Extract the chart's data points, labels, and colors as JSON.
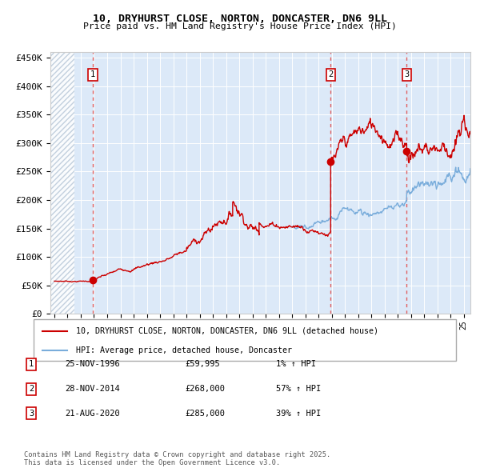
{
  "title1": "10, DRYHURST CLOSE, NORTON, DONCASTER, DN6 9LL",
  "title2": "Price paid vs. HM Land Registry's House Price Index (HPI)",
  "ylabel_ticks": [
    "£0",
    "£50K",
    "£100K",
    "£150K",
    "£200K",
    "£250K",
    "£300K",
    "£350K",
    "£400K",
    "£450K"
  ],
  "ytick_vals": [
    0,
    50000,
    100000,
    150000,
    200000,
    250000,
    300000,
    350000,
    400000,
    450000
  ],
  "xlim_start": 1993.7,
  "xlim_end": 2025.5,
  "ylim_min": 0,
  "ylim_max": 460000,
  "sale_dates": [
    1996.92,
    2014.92,
    2020.67
  ],
  "sale_prices": [
    59995,
    268000,
    285000
  ],
  "legend_line1": "10, DRYHURST CLOSE, NORTON, DONCASTER, DN6 9LL (detached house)",
  "legend_line2": "HPI: Average price, detached house, Doncaster",
  "table_rows": [
    {
      "num": "1",
      "date": "25-NOV-1996",
      "price": "£59,995",
      "change": "1% ↑ HPI"
    },
    {
      "num": "2",
      "date": "28-NOV-2014",
      "price": "£268,000",
      "change": "57% ↑ HPI"
    },
    {
      "num": "3",
      "date": "21-AUG-2020",
      "price": "£285,000",
      "change": "39% ↑ HPI"
    }
  ],
  "footnote": "Contains HM Land Registry data © Crown copyright and database right 2025.\nThis data is licensed under the Open Government Licence v3.0.",
  "bg_color": "#dce9f8",
  "grid_color": "#ffffff",
  "red_line_color": "#cc0000",
  "blue_line_color": "#7aaddb",
  "dashed_line_color": "#e06060"
}
